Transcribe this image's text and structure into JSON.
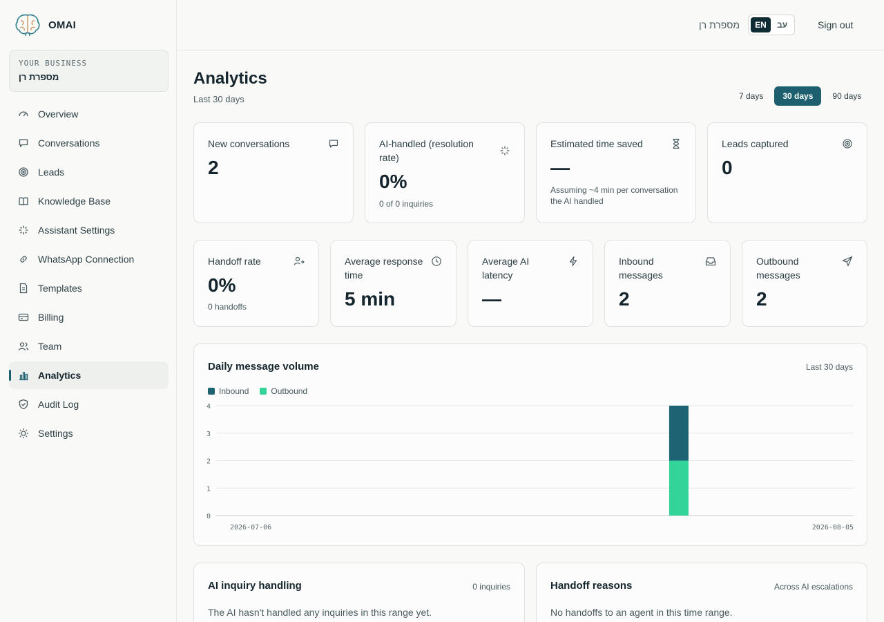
{
  "brand": {
    "name": "OMAI"
  },
  "business": {
    "label": "YOUR BUSINESS",
    "name": "מספרת רן"
  },
  "nav": [
    {
      "label": "Overview",
      "icon": "gauge-icon"
    },
    {
      "label": "Conversations",
      "icon": "chat-bubble-icon"
    },
    {
      "label": "Leads",
      "icon": "target-icon"
    },
    {
      "label": "Knowledge Base",
      "icon": "book-icon"
    },
    {
      "label": "Assistant Settings",
      "icon": "sparkle-icon"
    },
    {
      "label": "WhatsApp Connection",
      "icon": "link-icon"
    },
    {
      "label": "Templates",
      "icon": "document-icon"
    },
    {
      "label": "Billing",
      "icon": "credit-card-icon"
    },
    {
      "label": "Team",
      "icon": "users-icon"
    },
    {
      "label": "Analytics",
      "icon": "bar-chart-icon",
      "active": true
    },
    {
      "label": "Audit Log",
      "icon": "shield-check-icon"
    },
    {
      "label": "Settings",
      "icon": "sun-gear-icon"
    }
  ],
  "topbar": {
    "business_name": "מספרת רן",
    "lang_en": "EN",
    "lang_he": "עב",
    "active_lang": "EN",
    "sign_out": "Sign out"
  },
  "page": {
    "title": "Analytics",
    "subtitle": "Last 30 days"
  },
  "range": {
    "options": [
      "7 days",
      "30 days",
      "90 days"
    ],
    "selected": "30 days"
  },
  "kpi_row1": [
    {
      "title": "New conversations",
      "value": "2",
      "sub": "",
      "icon": "chat-bubble-icon"
    },
    {
      "title": "AI-handled (resolution rate)",
      "value": "0%",
      "sub": "0 of 0 inquiries",
      "icon": "sparkle-icon"
    },
    {
      "title": "Estimated time saved",
      "value": "—",
      "sub": "Assuming ~4 min per conversation the AI handled",
      "icon": "hourglass-icon"
    },
    {
      "title": "Leads captured",
      "value": "0",
      "sub": "",
      "icon": "target-icon"
    }
  ],
  "kpi_row2": [
    {
      "title": "Handoff rate",
      "value": "0%",
      "sub": "0 handoffs",
      "icon": "user-arrow-icon"
    },
    {
      "title": "Average response time",
      "value": "5 min",
      "sub": "",
      "icon": "clock-icon"
    },
    {
      "title": "Average AI latency",
      "value": "—",
      "sub": "",
      "icon": "lightning-icon"
    },
    {
      "title": "Inbound messages",
      "value": "2",
      "sub": "",
      "icon": "inbox-icon"
    },
    {
      "title": "Outbound messages",
      "value": "2",
      "sub": "",
      "icon": "send-icon"
    }
  ],
  "chart": {
    "title": "Daily message volume",
    "range_label": "Last 30 days"
  },
  "chart_data": {
    "type": "bar",
    "stacked": true,
    "title": "Daily message volume",
    "x_start_label": "2026-07-06",
    "x_end_label": "2026-08-05",
    "num_days": 31,
    "yticks": [
      0,
      1,
      2,
      3,
      4
    ],
    "ylim": [
      0,
      4
    ],
    "series": [
      {
        "name": "Inbound",
        "color": "#1d6373"
      },
      {
        "name": "Outbound",
        "color": "#34d399"
      }
    ],
    "nonzero_points": [
      {
        "day_index": 22,
        "Inbound": 2,
        "Outbound": 2
      }
    ],
    "grid": true,
    "legend": "top-left"
  },
  "ai_inquiry": {
    "title": "AI inquiry handling",
    "right": "0 inquiries",
    "text": "The AI hasn't handled any inquiries in this range yet."
  },
  "handoff": {
    "title": "Handoff reasons",
    "right": "Across AI escalations",
    "text": "No handoffs to an agent in this time range."
  }
}
